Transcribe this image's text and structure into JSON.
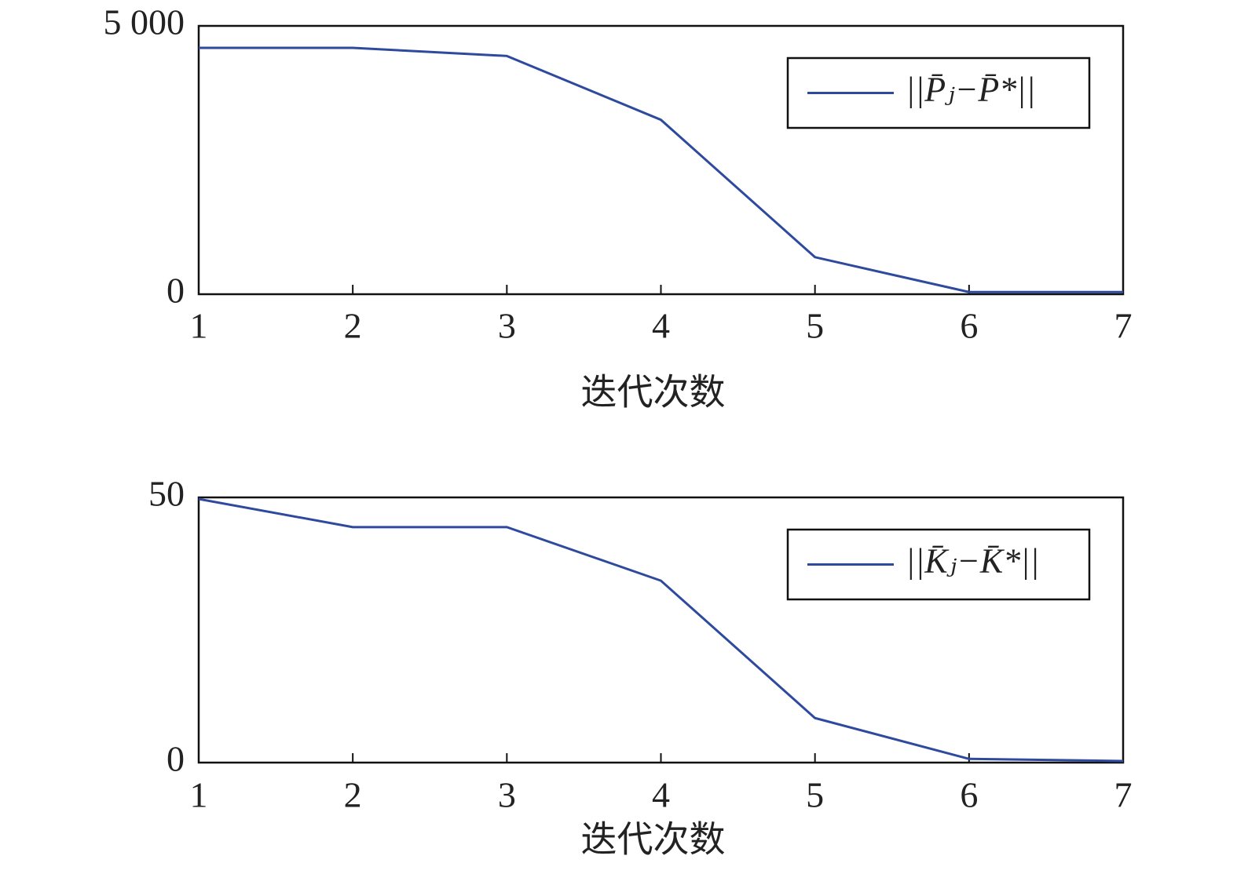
{
  "chart_data": [
    {
      "type": "line",
      "x_label": "迭代次数",
      "x": [
        1,
        2,
        3,
        4,
        5,
        6,
        7
      ],
      "series": [
        {
          "name": "||P̄ⱼ−P̄*||",
          "color": "#2e4a9e",
          "values": [
            4590,
            4590,
            4440,
            3250,
            690,
            40,
            40
          ]
        }
      ],
      "xlim": [
        1,
        7
      ],
      "xticks": [
        1,
        2,
        3,
        4,
        5,
        6,
        7
      ],
      "ylim": [
        0,
        5000
      ],
      "yticks": [
        0,
        {
          "value": 5000,
          "label": "5 000"
        }
      ],
      "grid": false,
      "legend": "upper right"
    },
    {
      "type": "line",
      "x_label": "迭代次数",
      "x": [
        1,
        2,
        3,
        4,
        5,
        6,
        7
      ],
      "series": [
        {
          "name": "||K̄ⱼ−K̄*||",
          "color": "#2e4a9e",
          "values": [
            49.7,
            44.4,
            44.4,
            34.3,
            8.4,
            0.7,
            0.3
          ]
        }
      ],
      "xlim": [
        1,
        7
      ],
      "xticks": [
        1,
        2,
        3,
        4,
        5,
        6,
        7
      ],
      "ylim": [
        0,
        50
      ],
      "yticks": [
        0,
        50
      ],
      "grid": false,
      "legend": "upper right"
    }
  ]
}
